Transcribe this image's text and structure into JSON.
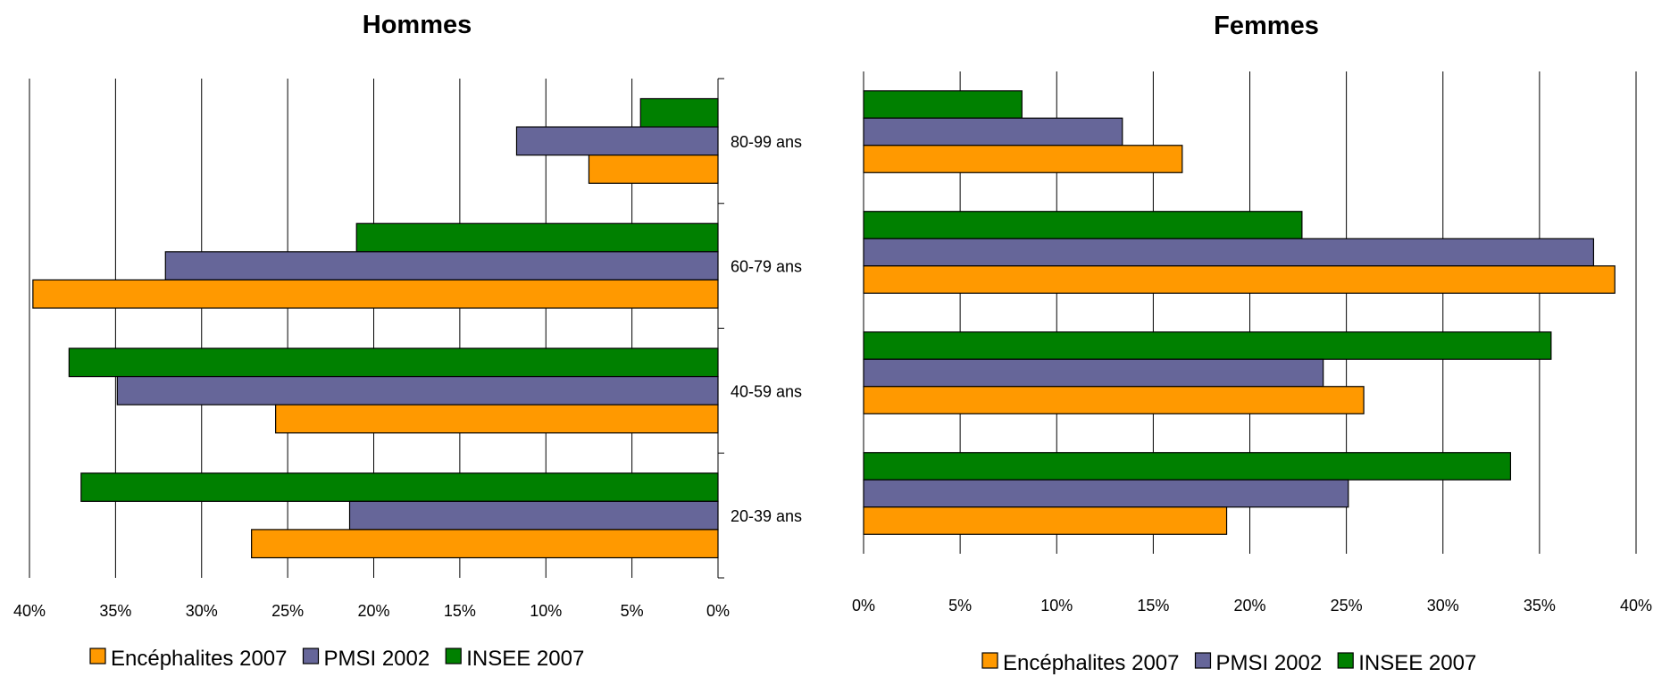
{
  "colors": {
    "Encéphalites 2007": "#ff9900",
    "PMSI 2002": "#666699",
    "INSEE 2007": "#008000"
  },
  "chart_data": [
    {
      "type": "bar",
      "orientation": "horizontal",
      "direction": "right-to-left",
      "title": "Hommes",
      "categories": [
        "80-99 ans",
        "60-79 ans",
        "40-59 ans",
        "20-39 ans"
      ],
      "series": [
        {
          "name": "Encéphalites 2007",
          "values": [
            7.5,
            39.8,
            25.7,
            27.1
          ]
        },
        {
          "name": "PMSI 2002",
          "values": [
            11.7,
            32.1,
            34.9,
            21.4
          ]
        },
        {
          "name": "INSEE 2007",
          "values": [
            4.5,
            21.0,
            37.7,
            37.0
          ]
        }
      ],
      "xlim": [
        0,
        40
      ],
      "xticks": [
        "40%",
        "35%",
        "30%",
        "25%",
        "20%",
        "15%",
        "10%",
        "5%",
        "0%"
      ],
      "grid": true,
      "legend": "bottom"
    },
    {
      "type": "bar",
      "orientation": "horizontal",
      "direction": "left-to-right",
      "title": "Femmes",
      "categories": [
        "80-99 ans",
        "60-79 ans",
        "40-59 ans",
        "20-39 ans"
      ],
      "series": [
        {
          "name": "Encéphalites 2007",
          "values": [
            16.5,
            38.9,
            25.9,
            18.8
          ]
        },
        {
          "name": "PMSI 2002",
          "values": [
            13.4,
            37.8,
            23.8,
            25.1
          ]
        },
        {
          "name": "INSEE 2007",
          "values": [
            8.2,
            22.7,
            35.6,
            33.5
          ]
        }
      ],
      "xlim": [
        0,
        40
      ],
      "xticks": [
        "0%",
        "5%",
        "10%",
        "15%",
        "20%",
        "25%",
        "30%",
        "35%",
        "40%"
      ],
      "grid": true,
      "legend": "bottom"
    }
  ]
}
